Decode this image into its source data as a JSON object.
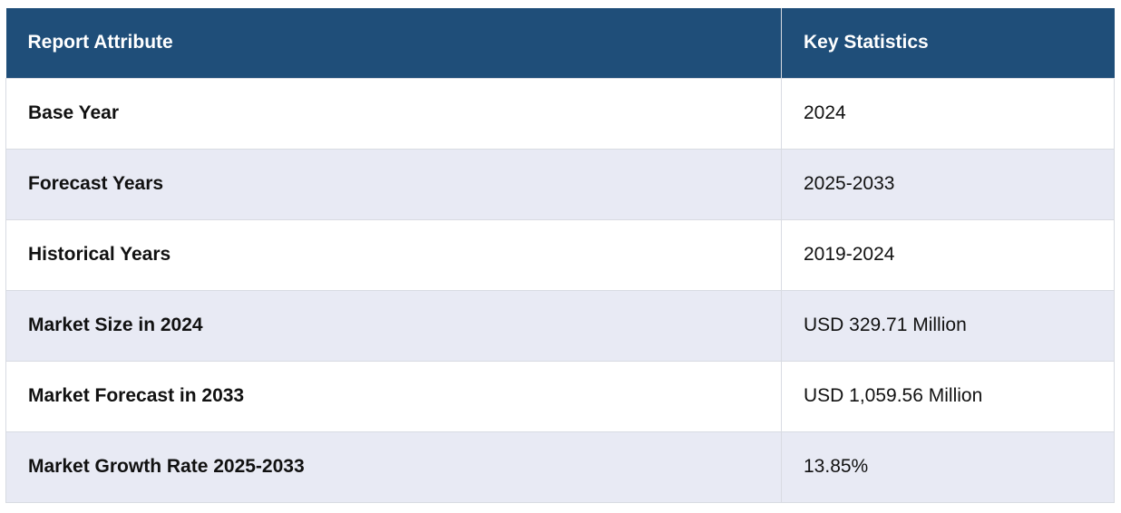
{
  "table": {
    "headers": [
      "Report Attribute",
      "Key Statistics"
    ],
    "rows": [
      {
        "attribute": "Base Year",
        "value": "2024"
      },
      {
        "attribute": "Forecast Years",
        "value": "2025-2033"
      },
      {
        "attribute": "Historical Years",
        "value": "2019-2024"
      },
      {
        "attribute": "Market Size in 2024",
        "value": "USD 329.71 Million"
      },
      {
        "attribute": "Market Forecast in 2033",
        "value": "USD 1,059.56 Million"
      },
      {
        "attribute": "Market Growth Rate 2025-2033",
        "value": "13.85%"
      }
    ]
  },
  "colors": {
    "header_bg": "#1f4e79",
    "header_text": "#ffffff",
    "row_alt_bg": "#e8eaf4",
    "border": "#d8dbe2"
  }
}
